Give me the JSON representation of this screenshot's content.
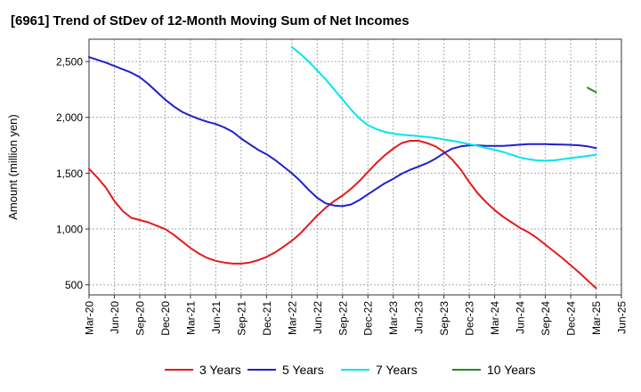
{
  "chart_data": {
    "type": "line",
    "title": "[6961]  Trend of StDev of 12-Month Moving Sum of Net Incomes",
    "ylabel": "Amount (million yen)",
    "xlabel": "",
    "ylim": [
      410,
      2700
    ],
    "yticks": [
      500,
      1000,
      1500,
      2000,
      2500
    ],
    "ytick_labels": [
      "500",
      "1,000",
      "1,500",
      "2,000",
      "2,500"
    ],
    "xticks": [
      "Mar-20",
      "Jun-20",
      "Sep-20",
      "Dec-20",
      "Mar-21",
      "Jun-21",
      "Sep-21",
      "Dec-21",
      "Mar-22",
      "Jun-22",
      "Sep-22",
      "Dec-22",
      "Mar-23",
      "Jun-23",
      "Sep-23",
      "Dec-23",
      "Mar-24",
      "Jun-24",
      "Sep-24",
      "Dec-24",
      "Mar-25",
      "Jun-25"
    ],
    "grid": true,
    "legend_position": "bottom",
    "series": [
      {
        "name": "3 Years",
        "color": "#e31a1c",
        "x": [
          "Mar-20",
          "Apr-20",
          "May-20",
          "Jun-20",
          "Jul-20",
          "Aug-20",
          "Sep-20",
          "Oct-20",
          "Nov-20",
          "Dec-20",
          "Jan-21",
          "Feb-21",
          "Mar-21",
          "Apr-21",
          "May-21",
          "Jun-21",
          "Jul-21",
          "Aug-21",
          "Sep-21",
          "Oct-21",
          "Nov-21",
          "Dec-21",
          "Jan-22",
          "Feb-22",
          "Mar-22",
          "Apr-22",
          "May-22",
          "Jun-22",
          "Jul-22",
          "Aug-22",
          "Sep-22",
          "Oct-22",
          "Nov-22",
          "Dec-22",
          "Jan-23",
          "Feb-23",
          "Mar-23",
          "Apr-23",
          "May-23",
          "Jun-23",
          "Jul-23",
          "Aug-23",
          "Sep-23",
          "Oct-23",
          "Nov-23",
          "Dec-23",
          "Jan-24",
          "Feb-24",
          "Mar-24",
          "Apr-24",
          "May-24",
          "Jun-24",
          "Jul-24",
          "Aug-24",
          "Sep-24",
          "Oct-24",
          "Nov-24",
          "Dec-24",
          "Jan-25",
          "Feb-25",
          "Mar-25"
        ],
        "y": [
          1540,
          1460,
          1370,
          1250,
          1160,
          1100,
          1080,
          1060,
          1030,
          1000,
          950,
          890,
          830,
          780,
          740,
          715,
          700,
          690,
          690,
          700,
          720,
          750,
          790,
          840,
          895,
          960,
          1040,
          1120,
          1190,
          1250,
          1300,
          1360,
          1430,
          1510,
          1590,
          1660,
          1720,
          1770,
          1790,
          1790,
          1770,
          1740,
          1690,
          1620,
          1530,
          1420,
          1320,
          1240,
          1170,
          1110,
          1060,
          1010,
          970,
          920,
          860,
          800,
          740,
          675,
          610,
          540,
          470
        ]
      },
      {
        "name": "5 Years",
        "color": "#1f1fcc",
        "x": [
          "Mar-20",
          "Apr-20",
          "May-20",
          "Jun-20",
          "Jul-20",
          "Aug-20",
          "Sep-20",
          "Oct-20",
          "Nov-20",
          "Dec-20",
          "Jan-21",
          "Feb-21",
          "Mar-21",
          "Apr-21",
          "May-21",
          "Jun-21",
          "Jul-21",
          "Aug-21",
          "Sep-21",
          "Oct-21",
          "Nov-21",
          "Dec-21",
          "Jan-22",
          "Feb-22",
          "Mar-22",
          "Apr-22",
          "May-22",
          "Jun-22",
          "Jul-22",
          "Aug-22",
          "Sep-22",
          "Oct-22",
          "Nov-22",
          "Dec-22",
          "Jan-23",
          "Feb-23",
          "Mar-23",
          "Apr-23",
          "May-23",
          "Jun-23",
          "Jul-23",
          "Aug-23",
          "Sep-23",
          "Oct-23",
          "Nov-23",
          "Dec-23",
          "Jan-24",
          "Feb-24",
          "Mar-24",
          "Apr-24",
          "May-24",
          "Jun-24",
          "Jul-24",
          "Aug-24",
          "Sep-24",
          "Oct-24",
          "Nov-24",
          "Dec-24",
          "Jan-25",
          "Feb-25",
          "Mar-25"
        ],
        "y": [
          2540,
          2515,
          2490,
          2460,
          2430,
          2400,
          2360,
          2300,
          2230,
          2160,
          2100,
          2050,
          2015,
          1985,
          1960,
          1940,
          1910,
          1870,
          1810,
          1760,
          1710,
          1670,
          1620,
          1560,
          1500,
          1430,
          1350,
          1280,
          1230,
          1210,
          1205,
          1220,
          1260,
          1310,
          1360,
          1410,
          1450,
          1495,
          1530,
          1560,
          1590,
          1630,
          1680,
          1720,
          1740,
          1750,
          1750,
          1745,
          1745,
          1745,
          1750,
          1755,
          1760,
          1760,
          1760,
          1758,
          1756,
          1754,
          1750,
          1740,
          1725
        ]
      },
      {
        "name": "7 Years",
        "color": "#00e5ee",
        "x": [
          "Mar-22",
          "Apr-22",
          "May-22",
          "Jun-22",
          "Jul-22",
          "Aug-22",
          "Sep-22",
          "Oct-22",
          "Nov-22",
          "Dec-22",
          "Jan-23",
          "Feb-23",
          "Mar-23",
          "Apr-23",
          "May-23",
          "Jun-23",
          "Jul-23",
          "Aug-23",
          "Sep-23",
          "Oct-23",
          "Nov-23",
          "Dec-23",
          "Jan-24",
          "Feb-24",
          "Mar-24",
          "Apr-24",
          "May-24",
          "Jun-24",
          "Jul-24",
          "Aug-24",
          "Sep-24",
          "Oct-24",
          "Nov-24",
          "Dec-24",
          "Jan-25",
          "Feb-25",
          "Mar-25"
        ],
        "y": [
          2630,
          2570,
          2500,
          2420,
          2340,
          2250,
          2160,
          2070,
          1990,
          1930,
          1895,
          1870,
          1855,
          1845,
          1838,
          1832,
          1825,
          1815,
          1802,
          1790,
          1775,
          1760,
          1745,
          1725,
          1710,
          1690,
          1665,
          1640,
          1625,
          1615,
          1612,
          1615,
          1625,
          1635,
          1645,
          1655,
          1665
        ]
      },
      {
        "name": "10 Years",
        "color": "#228b22",
        "x": [
          "Feb-25",
          "Mar-25"
        ],
        "y": [
          2265,
          2225
        ]
      }
    ]
  }
}
